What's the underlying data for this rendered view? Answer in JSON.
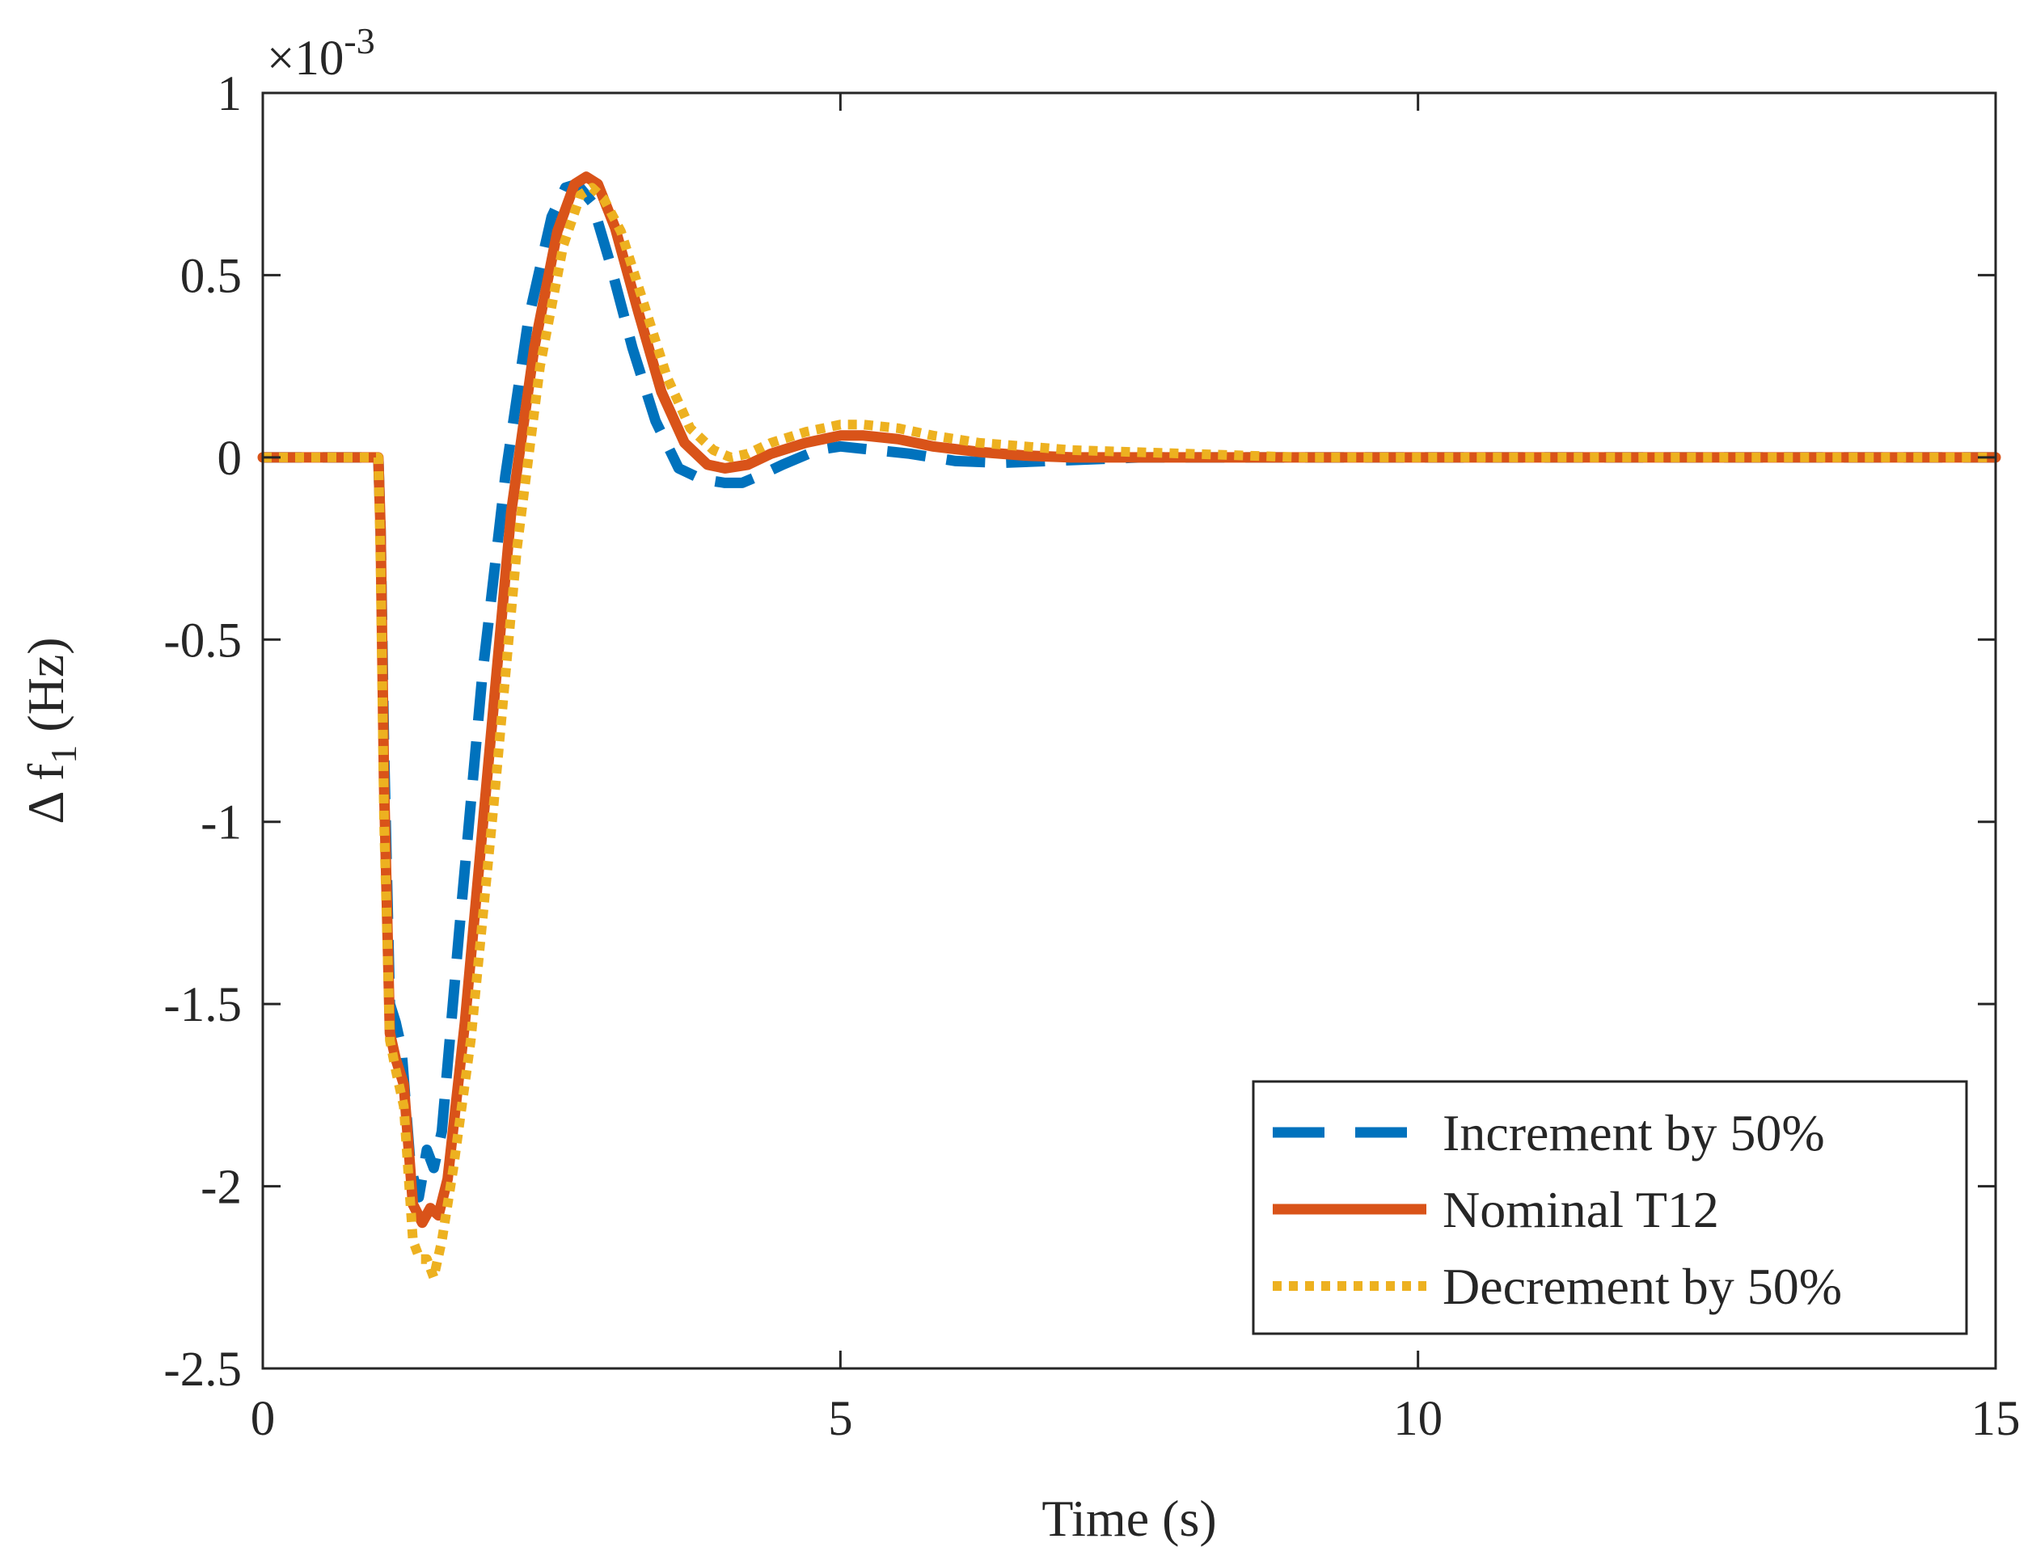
{
  "chart_data": {
    "type": "line",
    "title": "",
    "xlabel": "Time (s)",
    "ylabel": {
      "prefix": "Δ f",
      "subscript": "1",
      "suffix": " (Hz)"
    },
    "exponent_label": {
      "base": "×10",
      "power": "-3"
    },
    "xlim": [
      0,
      15
    ],
    "ylim": [
      -2.5,
      1
    ],
    "xticks": [
      0,
      5,
      10,
      15
    ],
    "xtick_labels": [
      "0",
      "5",
      "10",
      "15"
    ],
    "yticks": [
      -2.5,
      -2,
      -1.5,
      -1,
      -0.5,
      0,
      0.5,
      1
    ],
    "ytick_labels": [
      "-2.5",
      "-2",
      "-1.5",
      "-1",
      "-0.5",
      "0",
      "0.5",
      "1"
    ],
    "grid": false,
    "legend_position": "bottom-right",
    "series": [
      {
        "name": "Increment by 50%",
        "color": "#0072BD",
        "style": "dashed",
        "x": [
          0,
          1.0,
          1.02,
          1.05,
          1.1,
          1.15,
          1.2,
          1.28,
          1.35,
          1.42,
          1.48,
          1.55,
          1.7,
          1.9,
          2.1,
          2.3,
          2.5,
          2.62,
          2.72,
          2.85,
          3.0,
          3.2,
          3.4,
          3.6,
          3.8,
          4.0,
          4.15,
          4.3,
          4.5,
          4.8,
          5.0,
          5.3,
          5.6,
          6.0,
          6.4,
          6.8,
          7.2,
          7.6,
          8.0,
          9.0,
          10.0,
          12.0,
          15.0
        ],
        "values": [
          0,
          0,
          -0.2,
          -0.8,
          -1.5,
          -1.55,
          -1.62,
          -1.95,
          -2.03,
          -1.9,
          -1.95,
          -1.85,
          -1.3,
          -0.6,
          -0.05,
          0.38,
          0.66,
          0.74,
          0.75,
          0.7,
          0.54,
          0.3,
          0.1,
          -0.03,
          -0.06,
          -0.07,
          -0.07,
          -0.05,
          -0.02,
          0.02,
          0.03,
          0.02,
          0.01,
          -0.01,
          -0.015,
          -0.01,
          -0.005,
          0,
          0,
          0,
          0,
          0,
          0
        ]
      },
      {
        "name": "Nominal T12",
        "color": "#D95319",
        "style": "solid",
        "x": [
          0,
          1.0,
          1.02,
          1.05,
          1.1,
          1.15,
          1.22,
          1.3,
          1.38,
          1.45,
          1.52,
          1.6,
          1.75,
          1.95,
          2.15,
          2.35,
          2.55,
          2.7,
          2.8,
          2.9,
          3.05,
          3.25,
          3.45,
          3.65,
          3.85,
          4.0,
          4.2,
          4.4,
          4.7,
          5.0,
          5.2,
          5.5,
          5.8,
          6.2,
          6.6,
          7.0,
          7.5,
          8.0,
          9.0,
          10.0,
          12.0,
          15.0
        ],
        "values": [
          0,
          0,
          -0.2,
          -0.9,
          -1.58,
          -1.65,
          -1.72,
          -2.05,
          -2.1,
          -2.06,
          -2.08,
          -1.98,
          -1.55,
          -0.85,
          -0.15,
          0.3,
          0.62,
          0.75,
          0.77,
          0.75,
          0.63,
          0.4,
          0.18,
          0.04,
          -0.02,
          -0.03,
          -0.02,
          0.01,
          0.04,
          0.06,
          0.06,
          0.05,
          0.03,
          0.015,
          0.005,
          0.0,
          0.0,
          0,
          0,
          0,
          0,
          0
        ]
      },
      {
        "name": "Decrement by 50%",
        "color": "#EDB120",
        "style": "dotted",
        "x": [
          0,
          1.0,
          1.02,
          1.05,
          1.1,
          1.15,
          1.22,
          1.3,
          1.36,
          1.42,
          1.48,
          1.55,
          1.65,
          1.8,
          2.0,
          2.2,
          2.4,
          2.6,
          2.75,
          2.85,
          2.95,
          3.1,
          3.3,
          3.5,
          3.7,
          3.9,
          4.05,
          4.2,
          4.4,
          4.7,
          5.0,
          5.2,
          5.5,
          5.8,
          6.2,
          6.6,
          7.0,
          7.5,
          8.0,
          8.5,
          9.0,
          10.0,
          12.0,
          15.0
        ],
        "values": [
          0,
          0,
          -0.3,
          -1.0,
          -1.6,
          -1.68,
          -1.78,
          -2.15,
          -2.2,
          -2.2,
          -2.25,
          -2.15,
          -1.95,
          -1.6,
          -0.95,
          -0.25,
          0.25,
          0.58,
          0.72,
          0.74,
          0.71,
          0.62,
          0.42,
          0.22,
          0.08,
          0.02,
          0.0,
          0.01,
          0.04,
          0.07,
          0.09,
          0.09,
          0.08,
          0.06,
          0.04,
          0.03,
          0.02,
          0.015,
          0.01,
          0.005,
          0.0,
          0,
          0,
          0
        ]
      }
    ]
  }
}
